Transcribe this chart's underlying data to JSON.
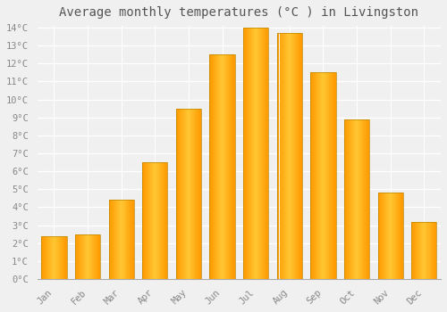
{
  "title": "Average monthly temperatures (°C ) in Livingston",
  "months": [
    "Jan",
    "Feb",
    "Mar",
    "Apr",
    "May",
    "Jun",
    "Jul",
    "Aug",
    "Sep",
    "Oct",
    "Nov",
    "Dec"
  ],
  "values": [
    2.4,
    2.5,
    4.4,
    6.5,
    9.5,
    12.5,
    14.0,
    13.7,
    11.5,
    8.9,
    4.8,
    3.2
  ],
  "bar_color": "#FFA500",
  "bar_edge_color": "#CC7700",
  "ylim": [
    0,
    14
  ],
  "yticks": [
    0,
    1,
    2,
    3,
    4,
    5,
    6,
    7,
    8,
    9,
    10,
    11,
    12,
    13,
    14
  ],
  "background_color": "#F0F0F0",
  "plot_bg_color": "#F0F0F0",
  "grid_color": "#FFFFFF",
  "title_fontsize": 10,
  "tick_fontsize": 7.5,
  "font_family": "monospace",
  "title_color": "#555555",
  "tick_color": "#888888"
}
